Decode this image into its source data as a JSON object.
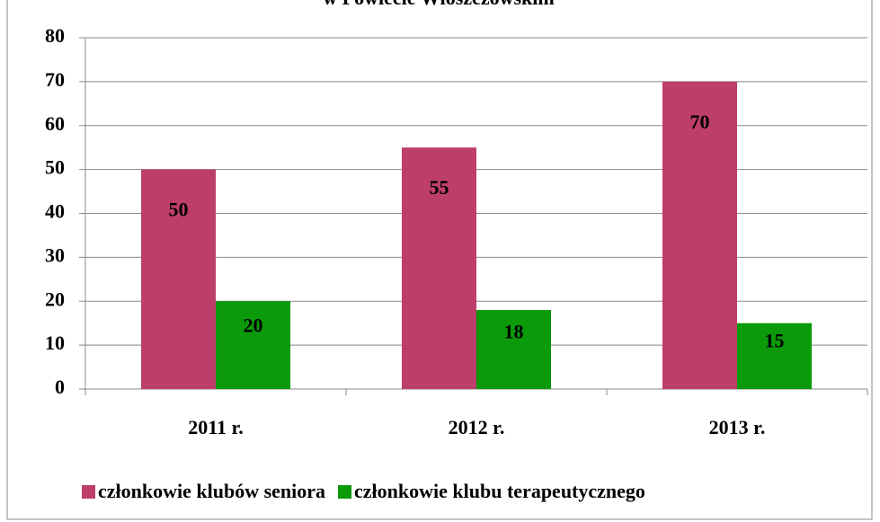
{
  "chart_data": {
    "type": "bar",
    "title": "w Powiecie Włoszczowskim",
    "categories": [
      "2011 r.",
      "2012 r.",
      "2013 r."
    ],
    "series": [
      {
        "name": "członkowie klubów seniora",
        "color": "#be3e6a",
        "values": [
          50,
          55,
          70
        ]
      },
      {
        "name": "członkowie klubu terapeutycznego",
        "color": "#0a9a0a",
        "values": [
          20,
          18,
          15
        ]
      }
    ],
    "ylim": [
      0,
      80
    ],
    "yticks": [
      0,
      10,
      20,
      30,
      40,
      50,
      60,
      70,
      80
    ],
    "grid": true,
    "legend": "bottom"
  }
}
